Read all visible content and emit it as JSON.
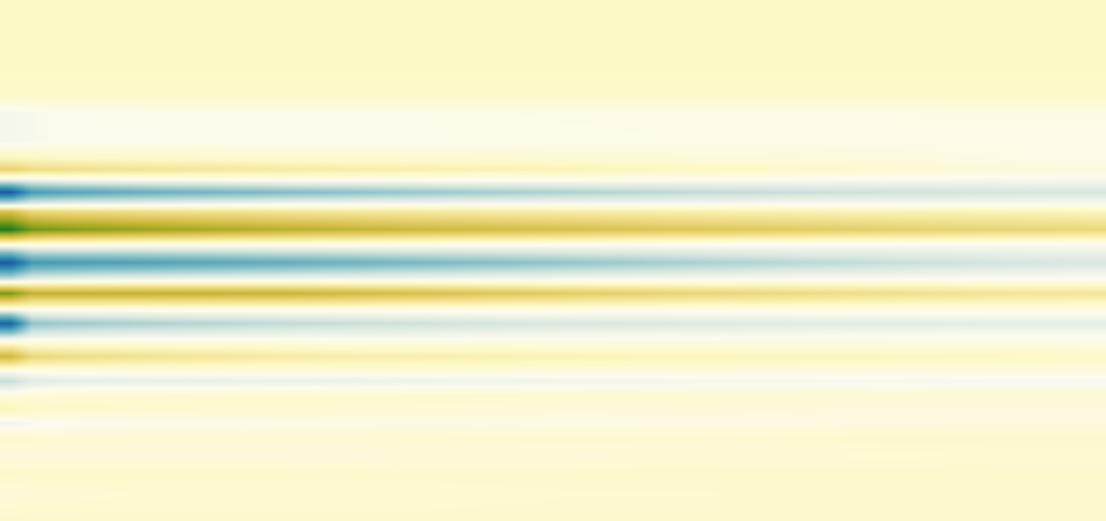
{
  "chart_data": {
    "type": "heatmap",
    "x": [
      15,
      45,
      90,
      200,
      400,
      600,
      800,
      1000,
      1200,
      1400,
      1550
    ],
    "y": [
      0,
      70,
      135,
      160,
      200,
      225,
      240,
      255,
      272,
      288,
      300,
      325,
      345,
      372,
      395,
      415,
      437,
      458,
      480,
      505,
      525,
      540,
      560,
      580,
      600,
      620,
      645,
      670,
      700,
      738
    ],
    "z": [
      [
        0.12,
        0.12,
        0.12,
        0.12,
        0.12,
        0.12,
        0.12,
        0.12,
        0.12,
        0.12,
        0.12
      ],
      [
        0.12,
        0.12,
        0.12,
        0.12,
        0.12,
        0.12,
        0.12,
        0.12,
        0.12,
        0.12,
        0.12
      ],
      [
        0.11,
        0.11,
        0.11,
        0.11,
        0.11,
        0.11,
        0.11,
        0.11,
        0.11,
        0.11,
        0.11
      ],
      [
        -0.03,
        -0.02,
        0,
        0.01,
        0.01,
        0.01,
        0.02,
        0.02,
        0.02,
        0.03,
        0.03
      ],
      [
        -0.03,
        -0.02,
        0,
        0,
        0.01,
        0.01,
        0.01,
        0.02,
        0.02,
        0.02,
        0.02
      ],
      [
        0.15,
        0.14,
        0.13,
        0.12,
        0.1,
        0.09,
        0.08,
        0.06,
        0.05,
        0.03,
        0.02
      ],
      [
        0.38,
        0.32,
        0.3,
        0.27,
        0.22,
        0.19,
        0.16,
        0.13,
        0.1,
        0.07,
        0.05
      ],
      [
        -0.1,
        -0.08,
        -0.05,
        -0.03,
        0,
        0,
        0,
        -0.01,
        -0.02,
        -0.03,
        -0.03
      ],
      [
        -0.95,
        -0.6,
        -0.55,
        -0.48,
        -0.4,
        -0.33,
        -0.27,
        -0.22,
        -0.19,
        -0.16,
        -0.15
      ],
      [
        -0.2,
        -0.12,
        -0.1,
        -0.08,
        -0.05,
        -0.04,
        -0.03,
        -0.03,
        -0.02,
        -0.02,
        -0.02
      ],
      [
        0.5,
        0.35,
        0.33,
        0.3,
        0.26,
        0.23,
        0.21,
        0.19,
        0.17,
        0.16,
        0.15
      ],
      [
        1.0,
        0.82,
        0.78,
        0.72,
        0.62,
        0.55,
        0.5,
        0.45,
        0.41,
        0.37,
        0.35
      ],
      [
        0.1,
        0.08,
        0.07,
        0.06,
        0.05,
        0.04,
        0.03,
        0.02,
        0.01,
        0,
        0
      ],
      [
        -0.95,
        -0.62,
        -0.6,
        -0.57,
        -0.5,
        -0.42,
        -0.35,
        -0.28,
        -0.22,
        -0.17,
        -0.15
      ],
      [
        -0.2,
        -0.1,
        -0.08,
        -0.06,
        -0.05,
        -0.04,
        -0.03,
        -0.02,
        -0.01,
        0,
        0
      ],
      [
        0.8,
        0.6,
        0.6,
        0.6,
        0.58,
        0.5,
        0.42,
        0.36,
        0.31,
        0.27,
        0.25
      ],
      [
        0.05,
        0.05,
        0.05,
        0.05,
        0.05,
        0.05,
        0.05,
        0.05,
        0.05,
        0.05,
        0.05
      ],
      [
        -0.9,
        -0.35,
        -0.32,
        -0.28,
        -0.22,
        -0.18,
        -0.15,
        -0.13,
        -0.11,
        -0.1,
        -0.1
      ],
      [
        -0.05,
        -0.02,
        -0.01,
        0,
        0,
        0,
        0.01,
        0.01,
        0.02,
        0.02,
        0.02
      ],
      [
        0.55,
        0.35,
        0.32,
        0.28,
        0.22,
        0.19,
        0.17,
        0.15,
        0.14,
        0.13,
        0.12
      ],
      [
        0,
        0.02,
        0.03,
        0.04,
        0.05,
        0.05,
        0.05,
        0.05,
        0.05,
        0.05,
        0.05
      ],
      [
        -0.2,
        -0.12,
        -0.1,
        -0.09,
        -0.08,
        -0.06,
        -0.05,
        -0.04,
        -0.03,
        -0.02,
        -0.02
      ],
      [
        0.05,
        0.07,
        0.08,
        0.09,
        0.1,
        0.1,
        0.09,
        0.09,
        0.08,
        0.08,
        0.08
      ],
      [
        0.15,
        0.12,
        0.1,
        0.09,
        0.08,
        0.07,
        0.06,
        0.06,
        0.05,
        0.05,
        0.05
      ],
      [
        -0.05,
        -0.02,
        0,
        0.01,
        0.02,
        0.03,
        0.03,
        0.04,
        0.04,
        0.05,
        0.05
      ],
      [
        0.1,
        0.09,
        0.08,
        0.08,
        0.08,
        0.08,
        0.09,
        0.09,
        0.1,
        0.1,
        0.1
      ],
      [
        0.05,
        0.05,
        0.05,
        0.05,
        0.05,
        0.06,
        0.06,
        0.07,
        0.07,
        0.08,
        0.08
      ],
      [
        0.1,
        0.1,
        0.1,
        0.1,
        0.1,
        0.1,
        0.1,
        0.1,
        0.1,
        0.1,
        0.1
      ],
      [
        0.06,
        0.07,
        0.07,
        0.08,
        0.08,
        0.08,
        0.09,
        0.09,
        0.1,
        0.1,
        0.1
      ],
      [
        0.1,
        0.1,
        0.1,
        0.1,
        0.1,
        0.1,
        0.1,
        0.1,
        0.1,
        0.1,
        0.1
      ]
    ],
    "xlim": [
      0,
      1568
    ],
    "ylim": [
      738,
      0
    ],
    "zlim": [
      -1,
      1
    ],
    "tick_labels": false
  }
}
